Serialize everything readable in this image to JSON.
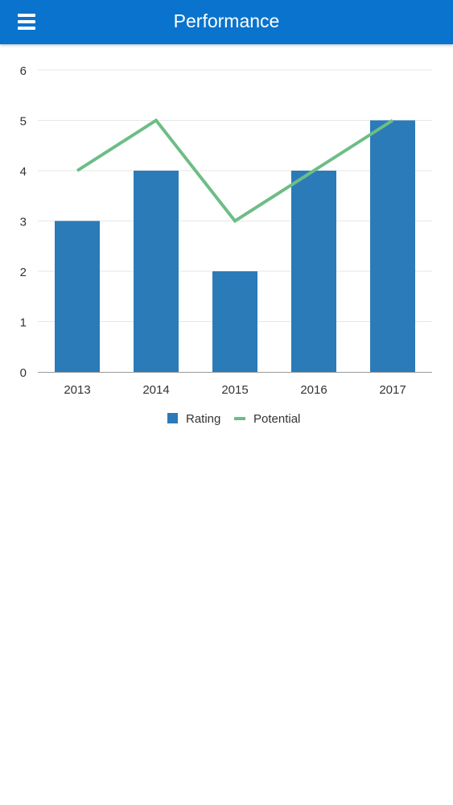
{
  "header": {
    "title": "Performance",
    "menu_icon": "hamburger-menu-icon"
  },
  "colors": {
    "header": "#0a73cd",
    "bar": "#2a7bb8",
    "line": "#6dbd86",
    "grid": "#e6e6e6",
    "axis": "#999999",
    "text": "#333333"
  },
  "chart_data": {
    "type": "bar",
    "categories": [
      "2013",
      "2014",
      "2015",
      "2016",
      "2017"
    ],
    "series": [
      {
        "name": "Rating",
        "type": "bar",
        "values": [
          3,
          4,
          2,
          4,
          5
        ]
      },
      {
        "name": "Potential",
        "type": "line",
        "values": [
          4,
          5,
          3,
          4,
          5
        ]
      }
    ],
    "y_ticks": [
      "0",
      "1",
      "2",
      "3",
      "4",
      "5",
      "6"
    ],
    "ylim": [
      0,
      6
    ],
    "grid": true,
    "legend": "bottom"
  }
}
